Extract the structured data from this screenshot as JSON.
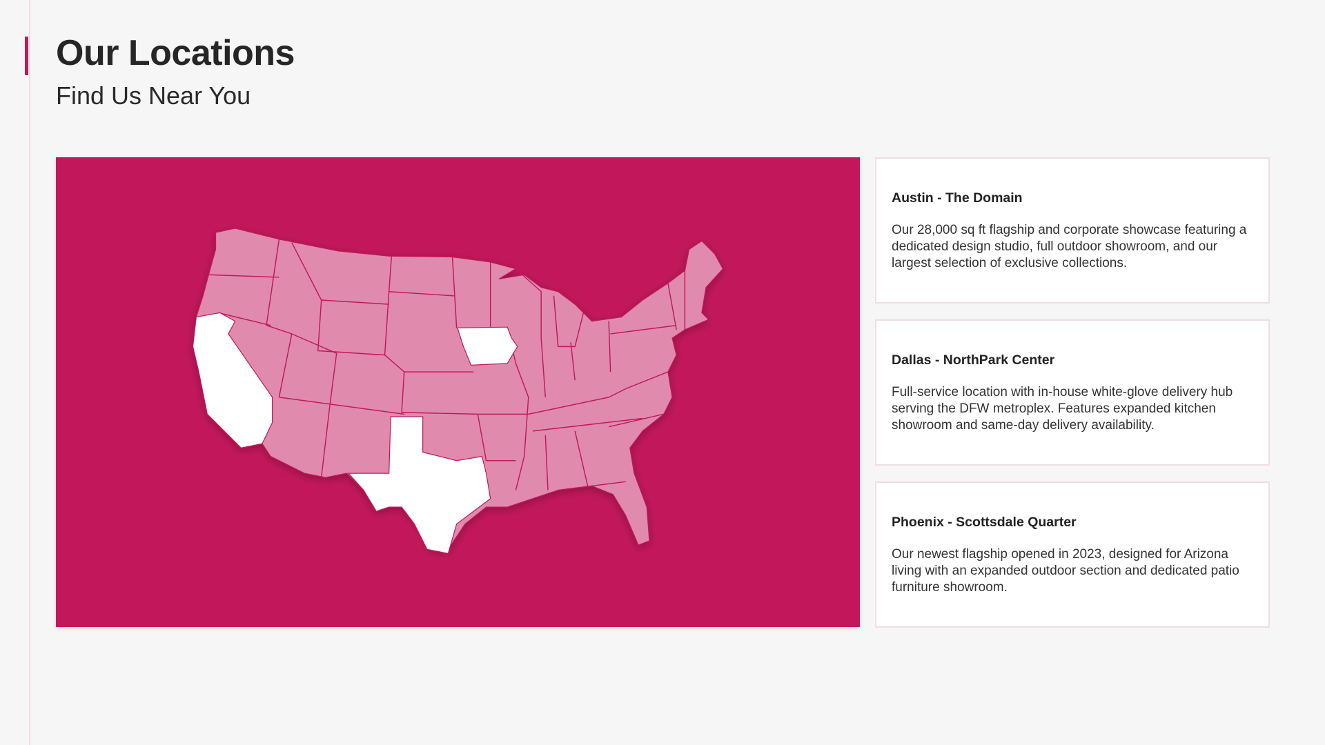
{
  "header": {
    "title": "Our Locations",
    "subtitle": "Find Us Near You"
  },
  "colors": {
    "accent": "#c2185b",
    "map_states": "#e08bad",
    "highlighted_states": "#ffffff"
  },
  "map": {
    "highlighted_states": [
      "California",
      "Texas",
      "Iowa"
    ]
  },
  "locations": [
    {
      "name": "Austin - The Domain",
      "description": "Our 28,000 sq ft flagship and corporate showcase featuring a dedicated design studio, full outdoor showroom, and our largest selection of exclusive collections."
    },
    {
      "name": "Dallas - NorthPark Center",
      "description": "Full-service location with in-house white-glove delivery hub serving the DFW metroplex. Features expanded kitchen showroom and same-day delivery availability."
    },
    {
      "name": "Phoenix - Scottsdale Quarter",
      "description": "Our newest flagship opened in 2023, designed for Arizona living with an expanded outdoor section and dedicated patio furniture showroom."
    }
  ]
}
